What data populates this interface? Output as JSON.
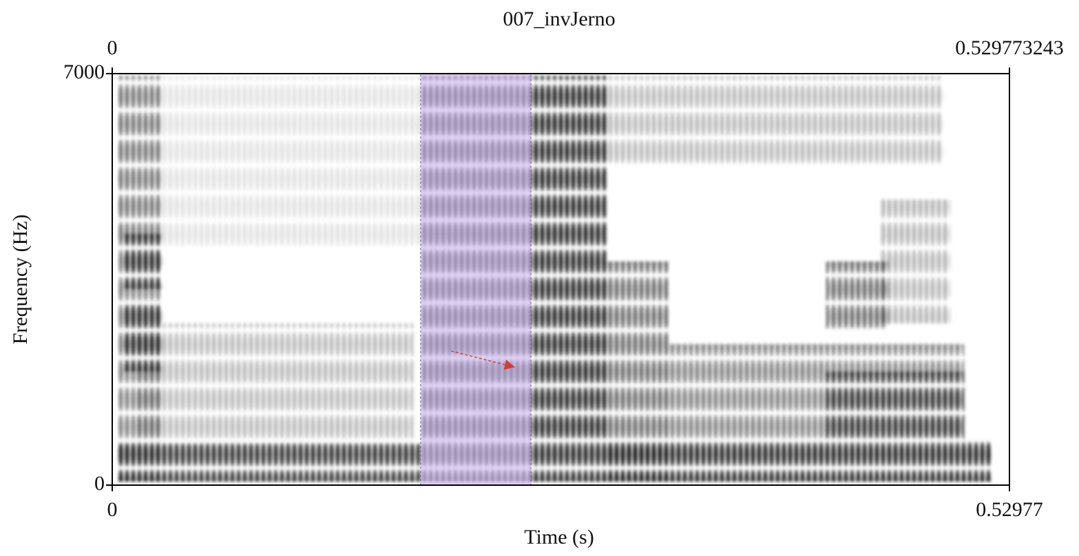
{
  "chart_data": {
    "type": "spectrogram",
    "title": "007_invJerno",
    "xlabel": "Time (s)",
    "ylabel": "Frequency (Hz)",
    "window": [
      0,
      0.529773243
    ],
    "xlim": [
      0,
      0.529773243
    ],
    "xticks": [
      0,
      {
        "value": 0.529773243,
        "label": "0.52977"
      }
    ],
    "ylim": [
      0,
      7000
    ],
    "yticks": [
      0,
      7000
    ],
    "selection": [
      0.1821,
      0.2472
    ],
    "selection_color": "#c8b0f0"
  }
}
